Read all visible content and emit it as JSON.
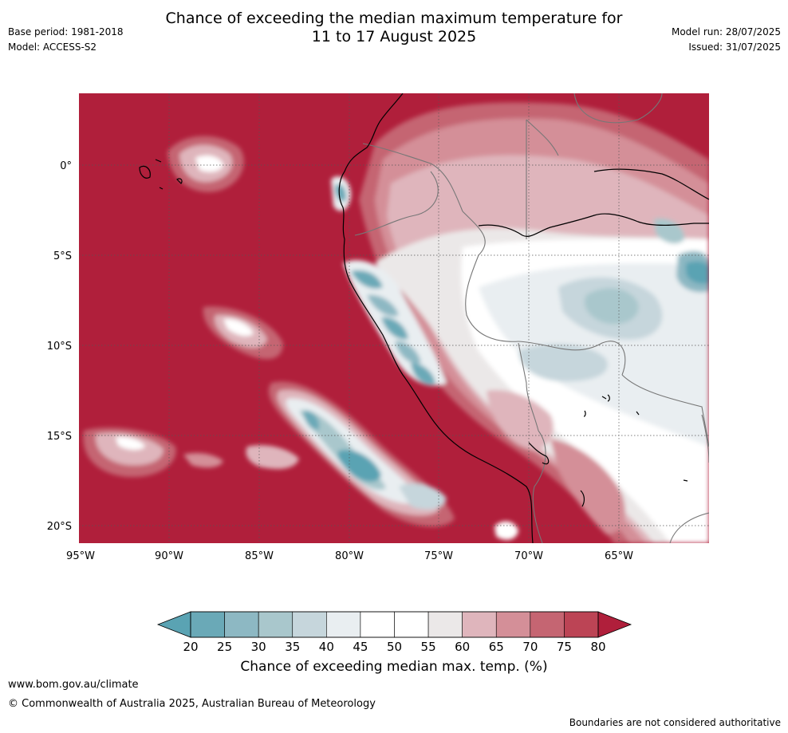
{
  "title_line1": "Chance of exceeding the median maximum temperature for",
  "title_line2": "11 to 17 August 2025",
  "meta_left": [
    "Base period: 1981-2018",
    "Model: ACCESS-S2"
  ],
  "meta_right": [
    "Model run: 28/07/2025",
    "Issued: 31/07/2025"
  ],
  "map": {
    "lon_range": [
      -95,
      -60
    ],
    "lat_range": [
      -21,
      4
    ],
    "lon_ticks": [
      {
        "value": -95,
        "label": "95°W"
      },
      {
        "value": -90,
        "label": "90°W"
      },
      {
        "value": -85,
        "label": "85°W"
      },
      {
        "value": -80,
        "label": "80°W"
      },
      {
        "value": -75,
        "label": "75°W"
      },
      {
        "value": -70,
        "label": "70°W"
      },
      {
        "value": -65,
        "label": "65°W"
      }
    ],
    "lat_ticks": [
      {
        "value": 0,
        "label": "0°"
      },
      {
        "value": -5,
        "label": "5°S"
      },
      {
        "value": -10,
        "label": "10°S"
      },
      {
        "value": -15,
        "label": "15°S"
      },
      {
        "value": -20,
        "label": "20°S"
      }
    ],
    "background_category": "80+",
    "regions": [
      {
        "name": "galapagos-anomaly",
        "level": 65,
        "lon": -88.5,
        "lat": 0.2
      },
      {
        "name": "north-peru-coast",
        "level": 45,
        "lon": -79.5,
        "lat": -6.5
      },
      {
        "name": "central-peru-coast",
        "level": 30,
        "lon": -77.5,
        "lat": -9.5
      },
      {
        "name": "offshore-south-peru",
        "level": 25,
        "lon": -80,
        "lat": -16.5
      },
      {
        "name": "amazon-interior",
        "level": 40,
        "lon": -67,
        "lat": -9
      },
      {
        "name": "brazil-east",
        "level": 25,
        "lon": -60.5,
        "lat": -6
      }
    ]
  },
  "colorbar": {
    "ticks": [
      "20",
      "25",
      "30",
      "35",
      "40",
      "45",
      "50",
      "55",
      "60",
      "65",
      "70",
      "75",
      "80"
    ],
    "colors": [
      "#6aa9b7",
      "#8db8c3",
      "#a9c7cc",
      "#c6d6dc",
      "#e9eef1",
      "#ffffff",
      "#ffffff",
      "#ebe8e8",
      "#dfb5bc",
      "#d48f98",
      "#c56572",
      "#bc4455"
    ],
    "under_color": "#5aa3b3",
    "over_color": "#b01f3b",
    "label": "Chance of exceeding median max. temp. (%)"
  },
  "footer": {
    "url": "www.bom.gov.au/climate",
    "copyright": "© Commonwealth of Australia 2025, Australian Bureau of Meteorology",
    "disclaimer": "Boundaries are not considered authoritative"
  }
}
